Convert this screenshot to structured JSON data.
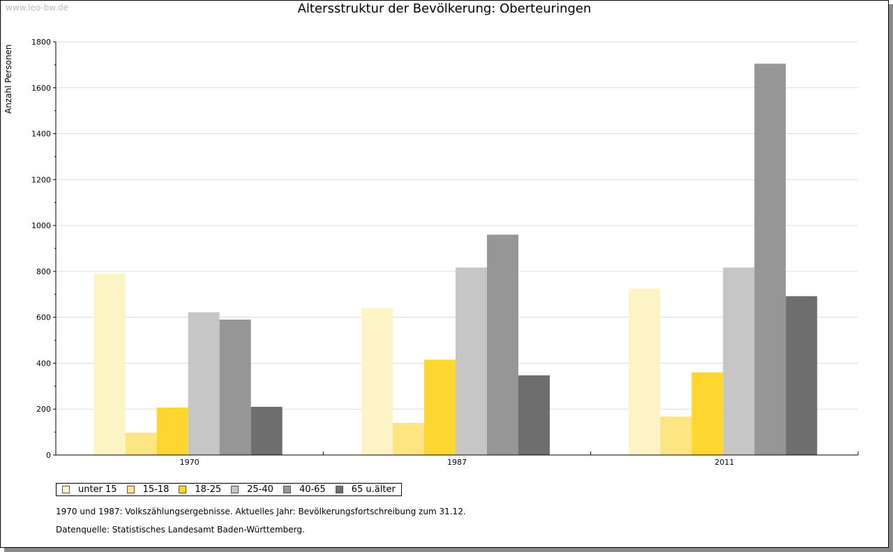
{
  "watermark": "www.leo-bw.de",
  "chart_data": {
    "type": "bar",
    "title": "Altersstruktur der Bevölkerung: Oberteuringen",
    "xlabel": "",
    "ylabel": "Anzahl Personen",
    "ylim": [
      0,
      1800
    ],
    "yticks": [
      0,
      200,
      400,
      600,
      800,
      1000,
      1200,
      1400,
      1600,
      1800
    ],
    "grid": true,
    "legend_position": "bottom-left",
    "categories": [
      "1970",
      "1987",
      "2011"
    ],
    "series": [
      {
        "name": "unter 15",
        "color": "#fcf4c4",
        "values": [
          790,
          640,
          725
        ]
      },
      {
        "name": "15-18",
        "color": "#fde681",
        "values": [
          97,
          140,
          168
        ]
      },
      {
        "name": "18-25",
        "color": "#fdd72f",
        "values": [
          207,
          415,
          360
        ]
      },
      {
        "name": "25-40",
        "color": "#c6c6c6",
        "values": [
          622,
          817,
          817
        ]
      },
      {
        "name": "40-65",
        "color": "#969696",
        "values": [
          590,
          960,
          1705
        ]
      },
      {
        "name": "65 u.älter",
        "color": "#6e6e6e",
        "values": [
          210,
          347,
          692
        ]
      }
    ]
  },
  "notes": {
    "line1": "1970 und 1987: Volkszählungsergebnisse. Aktuelles Jahr: Bevölkerungsfortschreibung zum 31.12.",
    "line2": "Datenquelle: Statistisches Landesamt Baden-Württemberg."
  }
}
